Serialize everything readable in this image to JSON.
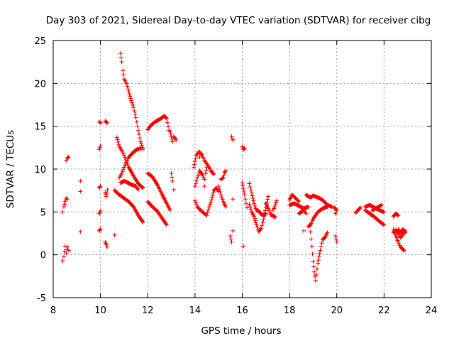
{
  "chart_data": {
    "type": "scatter",
    "title": "Day 303 of 2021, Sidereal Day-to-day VTEC variation (SDTVAR) for receiver cibg",
    "xlabel": "GPS time / hours",
    "ylabel": "SDTVAR / TECUs",
    "xlim": [
      8,
      24
    ],
    "ylim": [
      -5,
      25
    ],
    "xticks": [
      8,
      10,
      12,
      14,
      16,
      18,
      20,
      22,
      24
    ],
    "yticks": [
      -5,
      0,
      5,
      10,
      15,
      20,
      25
    ],
    "xtick_labels": [
      "8",
      "10",
      "12",
      "14",
      "16",
      "18",
      "20",
      "22",
      "24"
    ],
    "ytick_labels": [
      "-5",
      "0",
      "5",
      "10",
      "15",
      "20",
      "25"
    ],
    "grid": true,
    "marker": "+",
    "color": "#ff0000",
    "series": [
      {
        "name": "SDTVAR",
        "tracks": [
          [
            [
              8.4,
              -0.7
            ],
            [
              8.45,
              -0.2
            ],
            [
              8.48,
              0.4
            ],
            [
              8.5,
              1.0
            ]
          ],
          [
            [
              8.55,
              0.2
            ],
            [
              8.58,
              0.6
            ],
            [
              8.62,
              0.9
            ],
            [
              8.66,
              0.5
            ]
          ],
          [
            [
              8.4,
              5.0
            ],
            [
              8.45,
              5.6
            ],
            [
              8.5,
              6.2
            ],
            [
              8.55,
              6.6
            ],
            [
              8.6,
              6.5
            ]
          ],
          [
            [
              8.55,
              11.0
            ],
            [
              8.6,
              11.3
            ],
            [
              8.65,
              11.4
            ]
          ],
          [
            [
              9.15,
              8.6
            ]
          ],
          [
            [
              9.15,
              7.4
            ]
          ],
          [
            [
              9.15,
              2.7
            ]
          ],
          [
            [
              9.95,
              15.5
            ],
            [
              10.02,
              15.4
            ]
          ],
          [
            [
              9.95,
              12.3
            ],
            [
              10.0,
              12.7
            ]
          ],
          [
            [
              9.95,
              7.8
            ],
            [
              10.0,
              8.0
            ]
          ],
          [
            [
              9.95,
              4.8
            ],
            [
              10.0,
              5.1
            ]
          ],
          [
            [
              9.95,
              2.8
            ],
            [
              10.0,
              3.0
            ]
          ],
          [
            [
              10.2,
              15.6
            ],
            [
              10.28,
              15.4
            ]
          ],
          [
            [
              10.2,
              7.3
            ],
            [
              10.25,
              6.8
            ],
            [
              10.3,
              7.6
            ]
          ],
          [
            [
              10.2,
              1.5
            ],
            [
              10.25,
              1.2
            ],
            [
              10.28,
              0.9
            ]
          ],
          [
            [
              10.6,
              2.3
            ]
          ],
          [
            [
              10.6,
              7.5
            ],
            [
              10.8,
              7.0
            ],
            [
              11.0,
              6.6
            ],
            [
              11.2,
              6.2
            ],
            [
              11.4,
              5.6
            ],
            [
              11.6,
              4.6
            ],
            [
              11.8,
              3.8
            ]
          ],
          [
            [
              10.7,
              13.7
            ],
            [
              10.8,
              12.6
            ],
            [
              10.9,
              12.2
            ],
            [
              11.0,
              11.6
            ],
            [
              11.1,
              10.8
            ],
            [
              11.2,
              10.2
            ],
            [
              11.4,
              9.2
            ],
            [
              11.6,
              8.3
            ],
            [
              11.8,
              7.8
            ]
          ],
          [
            [
              10.85,
              8.4
            ],
            [
              11.0,
              8.6
            ],
            [
              11.1,
              8.5
            ],
            [
              11.3,
              8.2
            ],
            [
              11.5,
              8.0
            ],
            [
              11.6,
              7.6
            ]
          ],
          [
            [
              10.8,
              9.0
            ],
            [
              10.9,
              9.5
            ],
            [
              11.0,
              10.2
            ],
            [
              11.1,
              10.8
            ],
            [
              11.2,
              11.4
            ],
            [
              11.4,
              12.0
            ],
            [
              11.55,
              12.3
            ],
            [
              11.7,
              12.4
            ]
          ],
          [
            [
              10.85,
              23.5
            ],
            [
              10.9,
              22.5
            ],
            [
              10.95,
              21.5
            ],
            [
              11.0,
              20.5
            ],
            [
              11.1,
              20.0
            ],
            [
              11.2,
              19.0
            ],
            [
              11.3,
              18.0
            ],
            [
              11.4,
              17.2
            ],
            [
              11.5,
              16.0
            ],
            [
              11.6,
              14.5
            ],
            [
              11.7,
              13.2
            ],
            [
              11.8,
              12.3
            ]
          ],
          [
            [
              12.0,
              14.6
            ],
            [
              12.1,
              15.0
            ],
            [
              12.3,
              15.5
            ],
            [
              12.5,
              15.8
            ],
            [
              12.7,
              16.2
            ],
            [
              12.8,
              15.9
            ],
            [
              12.9,
              14.5
            ]
          ],
          [
            [
              12.0,
              9.5
            ],
            [
              12.2,
              9.1
            ],
            [
              12.4,
              8.2
            ],
            [
              12.6,
              7.1
            ],
            [
              12.8,
              6.0
            ],
            [
              12.95,
              5.2
            ]
          ],
          [
            [
              12.0,
              6.2
            ],
            [
              12.2,
              5.6
            ],
            [
              12.4,
              5.1
            ],
            [
              12.6,
              4.3
            ],
            [
              12.8,
              3.5
            ]
          ],
          [
            [
              12.95,
              14.4
            ],
            [
              13.05,
              13.2
            ]
          ],
          [
            [
              13.1,
              13.8
            ],
            [
              13.2,
              13.4
            ]
          ],
          [
            [
              13.0,
              9.5
            ],
            [
              13.05,
              8.6
            ],
            [
              13.1,
              7.6
            ]
          ],
          [
            [
              13.95,
              10.2
            ],
            [
              14.05,
              11.6
            ],
            [
              14.15,
              12.0
            ],
            [
              14.2,
              11.4
            ]
          ],
          [
            [
              14.0,
              8.0
            ],
            [
              14.1,
              9.0
            ],
            [
              14.2,
              9.8
            ],
            [
              14.3,
              9.4
            ],
            [
              14.4,
              8.8
            ]
          ],
          [
            [
              14.0,
              6.3
            ],
            [
              14.1,
              5.6
            ],
            [
              14.2,
              5.3
            ],
            [
              14.4,
              4.8
            ],
            [
              14.5,
              4.6
            ],
            [
              14.6,
              5.6
            ],
            [
              14.7,
              6.4
            ],
            [
              14.8,
              7.5
            ],
            [
              14.9,
              7.8
            ],
            [
              15.0,
              7.4
            ]
          ],
          [
            [
              14.2,
              12.0
            ],
            [
              14.3,
              11.6
            ],
            [
              14.4,
              11.0
            ],
            [
              14.5,
              10.6
            ],
            [
              14.6,
              10.2
            ],
            [
              14.7,
              9.7
            ],
            [
              14.8,
              9.4
            ]
          ],
          [
            [
              14.4,
              8.0
            ],
            [
              14.45,
              9.5
            ],
            [
              14.5,
              10.2
            ]
          ],
          [
            [
              15.0,
              8.0
            ],
            [
              15.1,
              7.0
            ],
            [
              15.2,
              6.2
            ],
            [
              15.3,
              5.6
            ]
          ],
          [
            [
              15.1,
              8.8
            ],
            [
              15.2,
              9.0
            ],
            [
              15.25,
              9.6
            ],
            [
              15.3,
              9.8
            ]
          ],
          [
            [
              15.5,
              2.2
            ],
            [
              15.55,
              1.5
            ],
            [
              15.6,
              2.8
            ],
            [
              15.6,
              13.4
            ],
            [
              15.6,
              6.5
            ]
          ],
          [
            [
              15.55,
              13.8
            ],
            [
              15.6,
              13.5
            ]
          ],
          [
            [
              16.0,
              12.6
            ],
            [
              16.05,
              12.3
            ],
            [
              16.1,
              12.4
            ]
          ],
          [
            [
              16.0,
              8.4
            ],
            [
              16.1,
              7.0
            ],
            [
              16.2,
              5.5
            ]
          ],
          [
            [
              16.05,
              1.0
            ]
          ],
          [
            [
              16.3,
              8.3
            ],
            [
              16.4,
              7.2
            ],
            [
              16.5,
              6.0
            ],
            [
              16.6,
              5.2
            ],
            [
              16.7,
              5.1
            ],
            [
              16.85,
              4.6
            ],
            [
              17.0,
              4.8
            ]
          ],
          [
            [
              16.3,
              5.9
            ],
            [
              16.4,
              5.0
            ],
            [
              16.5,
              4.5
            ],
            [
              16.6,
              3.5
            ],
            [
              16.7,
              2.7
            ],
            [
              16.8,
              3.1
            ],
            [
              16.9,
              4.1
            ],
            [
              17.0,
              5.5
            ],
            [
              17.1,
              6.8
            ]
          ],
          [
            [
              17.0,
              6.0
            ],
            [
              17.1,
              5.4
            ],
            [
              17.2,
              4.7
            ],
            [
              17.4,
              4.4
            ]
          ],
          [
            [
              17.3,
              5.2
            ],
            [
              17.4,
              5.8
            ],
            [
              17.45,
              6.3
            ]
          ],
          [
            [
              18.0,
              6.4
            ],
            [
              18.1,
              7.0
            ],
            [
              18.3,
              6.5
            ],
            [
              18.4,
              6.2
            ]
          ],
          [
            [
              18.0,
              5.8
            ],
            [
              18.2,
              6.0
            ],
            [
              18.4,
              5.7
            ],
            [
              18.6,
              5.4
            ],
            [
              18.8,
              5.6
            ]
          ],
          [
            [
              18.4,
              4.8
            ],
            [
              18.6,
              5.2
            ],
            [
              18.7,
              4.8
            ]
          ],
          [
            [
              18.6,
              2.8
            ]
          ],
          [
            [
              18.7,
              7.0
            ],
            [
              18.8,
              6.8
            ],
            [
              18.9,
              6.7
            ],
            [
              19.0,
              6.9
            ],
            [
              19.2,
              6.7
            ],
            [
              19.4,
              6.4
            ],
            [
              19.6,
              5.8
            ],
            [
              19.8,
              5.6
            ]
          ],
          [
            [
              18.8,
              3.3
            ],
            [
              18.9,
              3.5
            ],
            [
              19.0,
              4.2
            ],
            [
              19.2,
              5.0
            ],
            [
              19.4,
              5.4
            ],
            [
              19.6,
              5.6
            ]
          ],
          [
            [
              18.85,
              3.5
            ],
            [
              18.95,
              1.0
            ],
            [
              19.0,
              -0.8
            ],
            [
              19.05,
              -2.0
            ],
            [
              19.1,
              -3.0
            ],
            [
              19.2,
              -1.0
            ],
            [
              19.3,
              0.5
            ],
            [
              19.4,
              1.8
            ],
            [
              19.5,
              2.0
            ],
            [
              19.6,
              2.6
            ]
          ],
          [
            [
              19.9,
              5.5
            ],
            [
              20.0,
              5.2
            ],
            [
              19.95,
              4.8
            ]
          ],
          [
            [
              19.95,
              2.2
            ],
            [
              20.0,
              1.5
            ]
          ],
          [
            [
              20.8,
              4.9
            ],
            [
              20.9,
              5.2
            ],
            [
              21.0,
              5.5
            ]
          ],
          [
            [
              21.2,
              5.6
            ],
            [
              21.4,
              5.8
            ],
            [
              21.6,
              5.5
            ],
            [
              21.8,
              5.2
            ],
            [
              22.0,
              5.0
            ]
          ],
          [
            [
              21.2,
              5.2
            ],
            [
              21.4,
              4.8
            ],
            [
              21.6,
              4.4
            ],
            [
              21.8,
              3.9
            ],
            [
              22.0,
              3.5
            ]
          ],
          [
            [
              21.5,
              5.2
            ],
            [
              21.7,
              5.5
            ],
            [
              21.9,
              5.8
            ]
          ],
          [
            [
              22.4,
              4.5
            ],
            [
              22.5,
              4.8
            ],
            [
              22.6,
              4.6
            ]
          ],
          [
            [
              22.4,
              3.0
            ],
            [
              22.5,
              2.2
            ],
            [
              22.6,
              1.5
            ],
            [
              22.7,
              0.9
            ],
            [
              22.85,
              0.5
            ]
          ],
          [
            [
              22.4,
              2.6
            ],
            [
              22.5,
              2.9
            ],
            [
              22.6,
              2.5
            ],
            [
              22.7,
              2.0
            ],
            [
              22.8,
              2.4
            ],
            [
              22.9,
              2.8
            ]
          ],
          [
            [
              22.6,
              3.0
            ],
            [
              22.7,
              2.6
            ],
            [
              22.8,
              3.0
            ],
            [
              22.9,
              2.6
            ]
          ]
        ]
      }
    ]
  }
}
